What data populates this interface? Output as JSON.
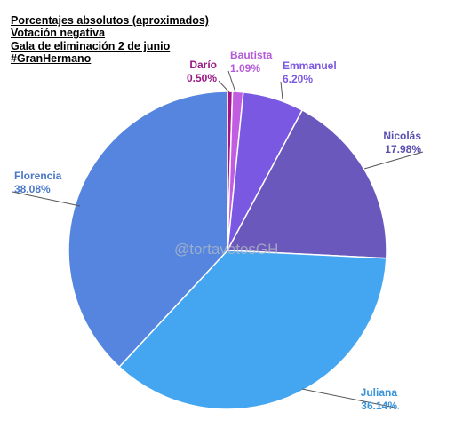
{
  "chart_data": {
    "type": "pie",
    "title_lines": [
      "Porcentajes absolutos (aproximados)",
      "Votación negativa",
      "Gala de eliminación 2 de junio",
      "#GranHermano"
    ],
    "watermark": "@tortavotosGH",
    "start_angle_deg": 0,
    "direction": "clockwise",
    "slices": [
      {
        "label": "Darío",
        "value": 0.5,
        "value_label": "0.50%",
        "color": "#a4158c",
        "label_color": "#9a1a86"
      },
      {
        "label": "Bautista",
        "value": 1.09,
        "value_label": "1.09%",
        "color": "#c05de0",
        "label_color": "#b45ad8"
      },
      {
        "label": "Emmanuel",
        "value": 6.2,
        "value_label": "6.20%",
        "color": "#7b58e2",
        "label_color": "#7b58e2"
      },
      {
        "label": "Nicolás",
        "value": 17.98,
        "value_label": "17.98%",
        "color": "#6a58bc",
        "label_color": "#5a4fb0"
      },
      {
        "label": "Juliana",
        "value": 36.14,
        "value_label": "36.14%",
        "color": "#44a5f0",
        "label_color": "#3b93d8"
      },
      {
        "label": "Florencia",
        "value": 38.08,
        "value_label": "38.08%",
        "color": "#5585de",
        "label_color": "#4a78c8"
      }
    ]
  }
}
